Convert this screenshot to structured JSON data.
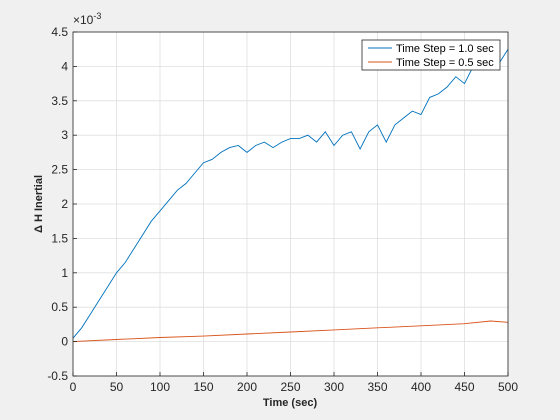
{
  "chart_data": {
    "type": "line",
    "xlabel": "Time (sec)",
    "ylabel": "Δ H Inertial",
    "exponent_label": "×10",
    "exponent_power": "-3",
    "xlim": [
      0,
      500
    ],
    "ylim": [
      -0.5,
      4.5
    ],
    "xticks": [
      "0",
      "50",
      "100",
      "150",
      "200",
      "250",
      "300",
      "350",
      "400",
      "450",
      "500"
    ],
    "yticks": [
      "-0.5",
      "0",
      "0.5",
      "1",
      "1.5",
      "2",
      "2.5",
      "3",
      "3.5",
      "4",
      "4.5"
    ],
    "grid": true,
    "legend_position": "top-right",
    "series": [
      {
        "name": "Time Step = 1.0 sec",
        "color": "#0072bd",
        "x": [
          0,
          10,
          20,
          30,
          40,
          50,
          60,
          70,
          80,
          90,
          100,
          110,
          120,
          130,
          140,
          150,
          160,
          170,
          180,
          190,
          200,
          210,
          220,
          230,
          240,
          250,
          260,
          270,
          280,
          290,
          300,
          310,
          320,
          330,
          340,
          350,
          360,
          370,
          380,
          390,
          400,
          410,
          420,
          430,
          440,
          450,
          460,
          470,
          480,
          490,
          500
        ],
        "y": [
          0.05,
          0.2,
          0.4,
          0.6,
          0.8,
          1.0,
          1.15,
          1.35,
          1.55,
          1.75,
          1.9,
          2.05,
          2.2,
          2.3,
          2.45,
          2.6,
          2.65,
          2.75,
          2.82,
          2.85,
          2.75,
          2.85,
          2.9,
          2.82,
          2.9,
          2.95,
          2.95,
          3.0,
          2.9,
          3.05,
          2.85,
          3.0,
          3.05,
          2.8,
          3.05,
          3.15,
          2.9,
          3.15,
          3.25,
          3.35,
          3.3,
          3.55,
          3.6,
          3.7,
          3.85,
          3.75,
          4.0,
          4.05,
          4.15,
          4.05,
          4.25
        ]
      },
      {
        "name": "Time Step = 0.5 sec",
        "color": "#d95319",
        "x": [
          0,
          50,
          100,
          150,
          200,
          250,
          300,
          350,
          400,
          450,
          480,
          500
        ],
        "y": [
          0.0,
          0.03,
          0.06,
          0.08,
          0.11,
          0.14,
          0.17,
          0.2,
          0.23,
          0.26,
          0.3,
          0.28
        ]
      }
    ]
  }
}
